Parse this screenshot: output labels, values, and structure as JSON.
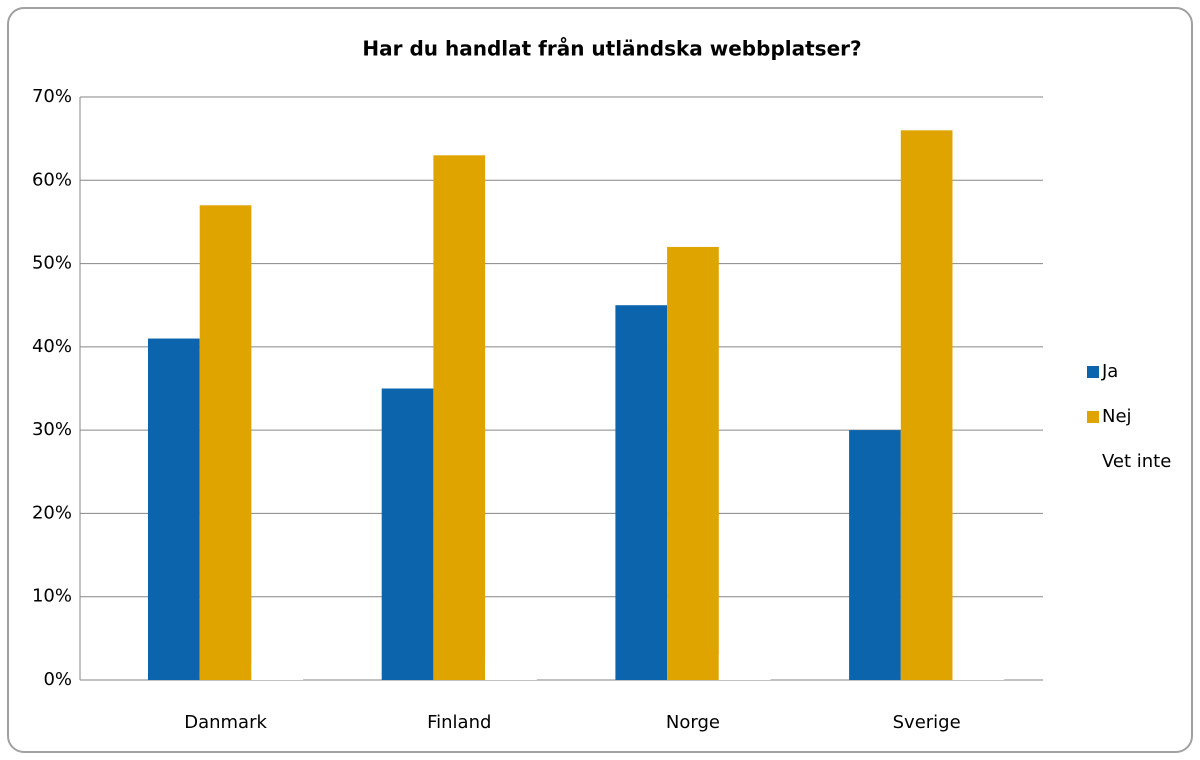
{
  "chart_data": {
    "type": "bar",
    "title": "Har du handlat från utländska webbplatser?",
    "categories": [
      "Danmark",
      "Finland",
      "Norge",
      "Sverige"
    ],
    "series": [
      {
        "name": "Ja",
        "color": "#0c64ac",
        "values": [
          41,
          35,
          45,
          30
        ]
      },
      {
        "name": "Nej",
        "color": "#e0a400",
        "values": [
          57,
          63,
          52,
          66
        ]
      },
      {
        "name": "Vet inte",
        "color": "#ffffff",
        "values": [
          2,
          2,
          3,
          4
        ]
      }
    ],
    "ylim": [
      0,
      70
    ],
    "yticks": [
      {
        "value": 0,
        "label": "0%"
      },
      {
        "value": 10,
        "label": "10%"
      },
      {
        "value": 20,
        "label": "20%"
      },
      {
        "value": 30,
        "label": "30%"
      },
      {
        "value": 40,
        "label": "40%"
      },
      {
        "value": 50,
        "label": "50%"
      },
      {
        "value": 60,
        "label": "60%"
      },
      {
        "value": 70,
        "label": "70%"
      }
    ],
    "grid": true,
    "legend": "right"
  }
}
